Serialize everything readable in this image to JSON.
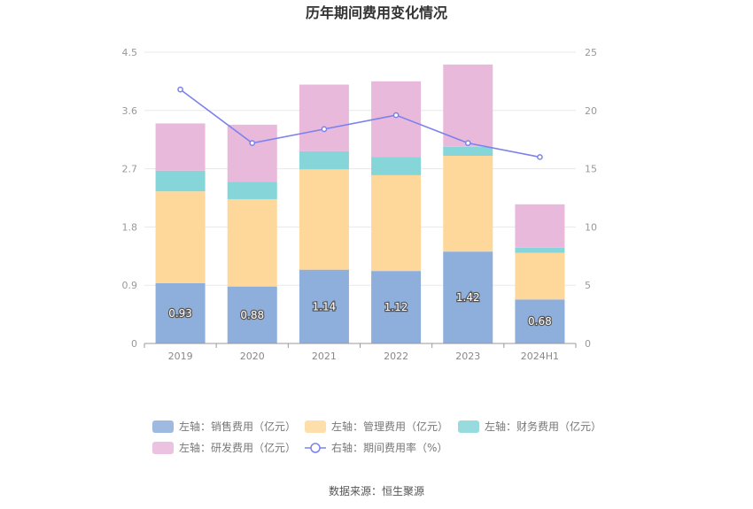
{
  "chart_data": {
    "type": "bar",
    "stacked": true,
    "title": "历年期间费用变化情况",
    "categories": [
      "2019",
      "2020",
      "2021",
      "2022",
      "2023",
      "2024H1"
    ],
    "left_axis": {
      "ylim": [
        0,
        4.5
      ],
      "ticks": [
        "0",
        "0.9",
        "1.8",
        "2.7",
        "3.6",
        "4.5"
      ],
      "tick_values": [
        0,
        0.9,
        1.8,
        2.7,
        3.6,
        4.5
      ]
    },
    "right_axis": {
      "ylim": [
        0,
        25
      ],
      "ticks": [
        "0",
        "5",
        "10",
        "15",
        "20",
        "25"
      ],
      "tick_values": [
        0,
        5,
        10,
        15,
        20,
        25
      ]
    },
    "series": [
      {
        "name": "左轴：销售费用（亿元）",
        "axis": "left",
        "color": "#8eaedb",
        "values": [
          0.93,
          0.88,
          1.14,
          1.12,
          1.42,
          0.68
        ],
        "labels": [
          "0.93",
          "0.88",
          "1.14",
          "1.12",
          "1.42",
          "0.68"
        ]
      },
      {
        "name": "左轴：管理费用（亿元）",
        "axis": "left",
        "color": "#fed89b",
        "values": [
          1.42,
          1.35,
          1.55,
          1.48,
          1.48,
          0.72
        ]
      },
      {
        "name": "左轴：财务费用（亿元）",
        "axis": "left",
        "color": "#86d5d8",
        "values": [
          0.32,
          0.27,
          0.28,
          0.28,
          0.14,
          0.08
        ]
      },
      {
        "name": "左轴：研发费用（亿元）",
        "axis": "left",
        "color": "#e8b9da",
        "values": [
          0.73,
          0.88,
          1.03,
          1.17,
          1.27,
          0.67
        ]
      },
      {
        "name": "右轴：期间费用率（%）",
        "axis": "right",
        "type": "line",
        "color": "#7b82ee",
        "values": [
          21.8,
          17.2,
          18.4,
          19.6,
          17.2,
          16.0
        ]
      }
    ],
    "legend_position": "bottom",
    "grid": true,
    "source": "数据来源：恒生聚源"
  }
}
